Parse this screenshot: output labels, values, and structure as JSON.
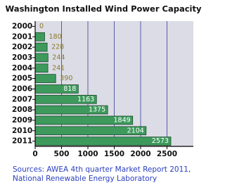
{
  "chart_data": {
    "type": "bar",
    "orientation": "horizontal",
    "title": "Washington Installed Wind Power Capacity",
    "categories": [
      "2000",
      "2001",
      "2002",
      "2003",
      "2004",
      "2005",
      "2006",
      "2007",
      "2008",
      "2009",
      "2010",
      "2011"
    ],
    "values": [
      0,
      180,
      228,
      244,
      241,
      390,
      818,
      1163,
      1375,
      1849,
      2104,
      2573
    ],
    "color": "#3d9a5c",
    "xlim": [
      0,
      3000
    ],
    "xticks": [
      0,
      500,
      1000,
      1500,
      2000,
      2500
    ],
    "grid": true,
    "source": [
      "Sources: AWEA 4th quarter Market Report 2011,",
      "National Renewable Energy Laboratory"
    ]
  }
}
